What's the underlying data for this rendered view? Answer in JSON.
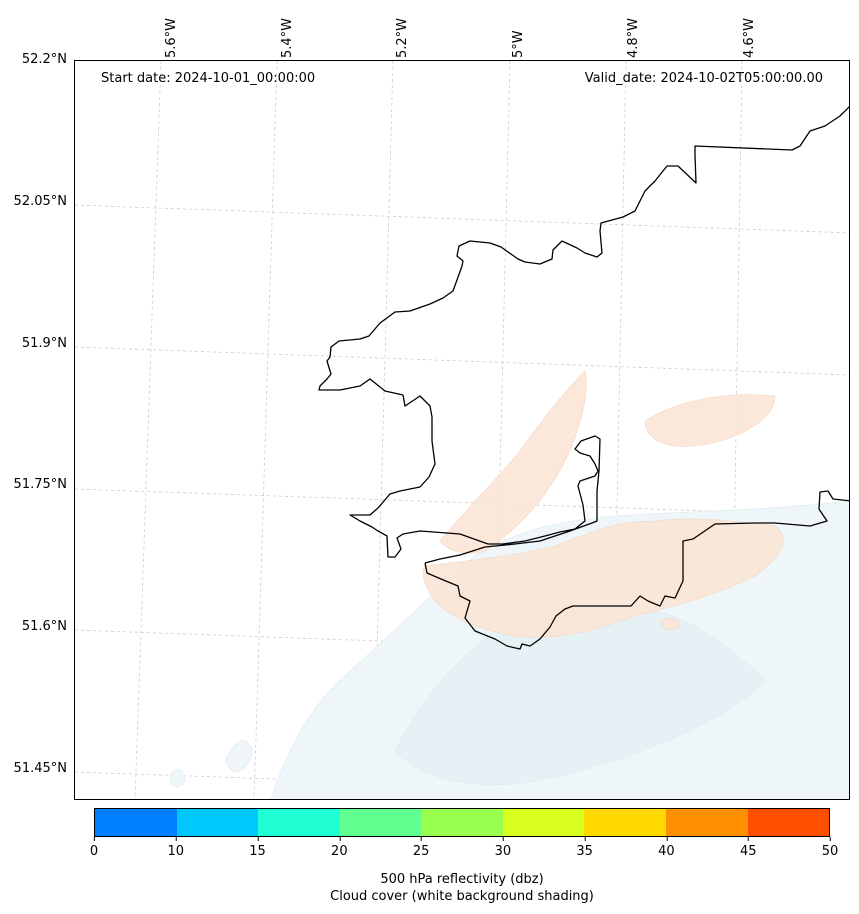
{
  "map": {
    "start_date": "Start date: 2024-10-01_00:00:00",
    "valid_date": "Valid_date: 2024-10-02T05:00:00.00",
    "longitude_labels": [
      "5.6°W",
      "5.4°W",
      "5.2°W",
      "5°W",
      "4.8°W",
      "4.6°W"
    ],
    "latitude_labels": [
      "52.2°N",
      "52.05°N",
      "51.9°N",
      "51.75°N",
      "51.6°N",
      "51.45°N"
    ],
    "coastline_color": "#000000",
    "gridline_color": "#cccccc",
    "cloud_shading_color": "#eef6f9",
    "reflectivity_shading_color": "#fbe6d6",
    "gridlines": "dashed"
  },
  "colorbar": {
    "ticks": [
      "0",
      "10",
      "15",
      "20",
      "25",
      "30",
      "35",
      "40",
      "45",
      "50"
    ],
    "colors": [
      "#0080ff",
      "#00c8ff",
      "#20ffd4",
      "#60ff90",
      "#98ff50",
      "#d8ff20",
      "#ffd800",
      "#ff9000",
      "#ff5000"
    ],
    "label_line1": "500 hPa reflectivity (dbz)",
    "label_line2": "Cloud cover (white background shading)"
  }
}
